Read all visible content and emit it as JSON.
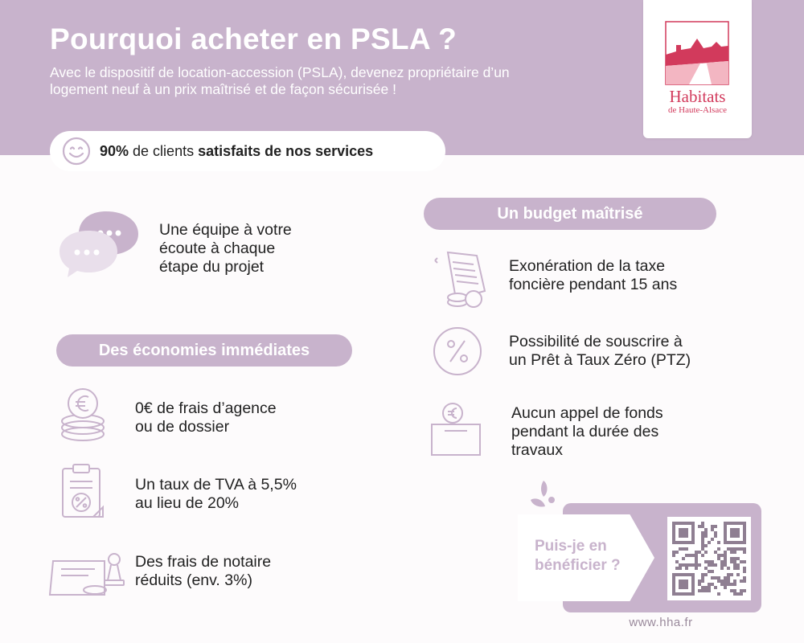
{
  "header": {
    "title": "Pourquoi acheter en PSLA  ?",
    "subtitle": "Avec le dispositif de location-accession (PSLA), devenez propriétaire d’un logement neuf à un prix maîtrisé et de façon sécurisée !"
  },
  "logo": {
    "name": "Habitats",
    "sub": "de Haute-Alsace",
    "icon": "logo-rooftops-icon"
  },
  "satisfaction": {
    "percent": "90%",
    "text_mid": " de clients ",
    "text_bold": "satisfaits de nos services",
    "icon": "smiley-icon"
  },
  "team": {
    "text": "Une équipe à votre\nécoute à chaque\nétape du projet",
    "icon": "chat-bubbles-icon"
  },
  "economies": {
    "heading": "Des économies immédiates",
    "items": [
      {
        "text": "0€ de frais d’agence\nou de dossier",
        "icon": "euro-coins-icon"
      },
      {
        "text": "Un taux de TVA à 5,5%\nau lieu de 20%",
        "icon": "clipboard-percent-icon"
      },
      {
        "text": "Des frais de notaire\nréduits (env. 3%)",
        "icon": "notary-stamp-icon"
      }
    ]
  },
  "budget": {
    "heading": "Un budget maîtrisé",
    "items": [
      {
        "text": "Exonération de la taxe\nfoncière pendant 15 ans",
        "icon": "tax-document-icon"
      },
      {
        "text": "Possibilité de souscrire à\nun Prêt à Taux Zéro (PTZ)",
        "icon": "percent-circle-icon"
      },
      {
        "text": "Aucun appel de fonds\npendant la durée des\ntravaux",
        "icon": "euro-box-icon"
      }
    ]
  },
  "qr": {
    "label": "Puis-je en\nbénéficier ?",
    "icon": "qr-code-icon"
  },
  "url": "www.hha.fr",
  "colors": {
    "accent": "#c8b3cc",
    "brand": "#d23a5c",
    "text": "#222222",
    "background": "#fdfbfc"
  }
}
